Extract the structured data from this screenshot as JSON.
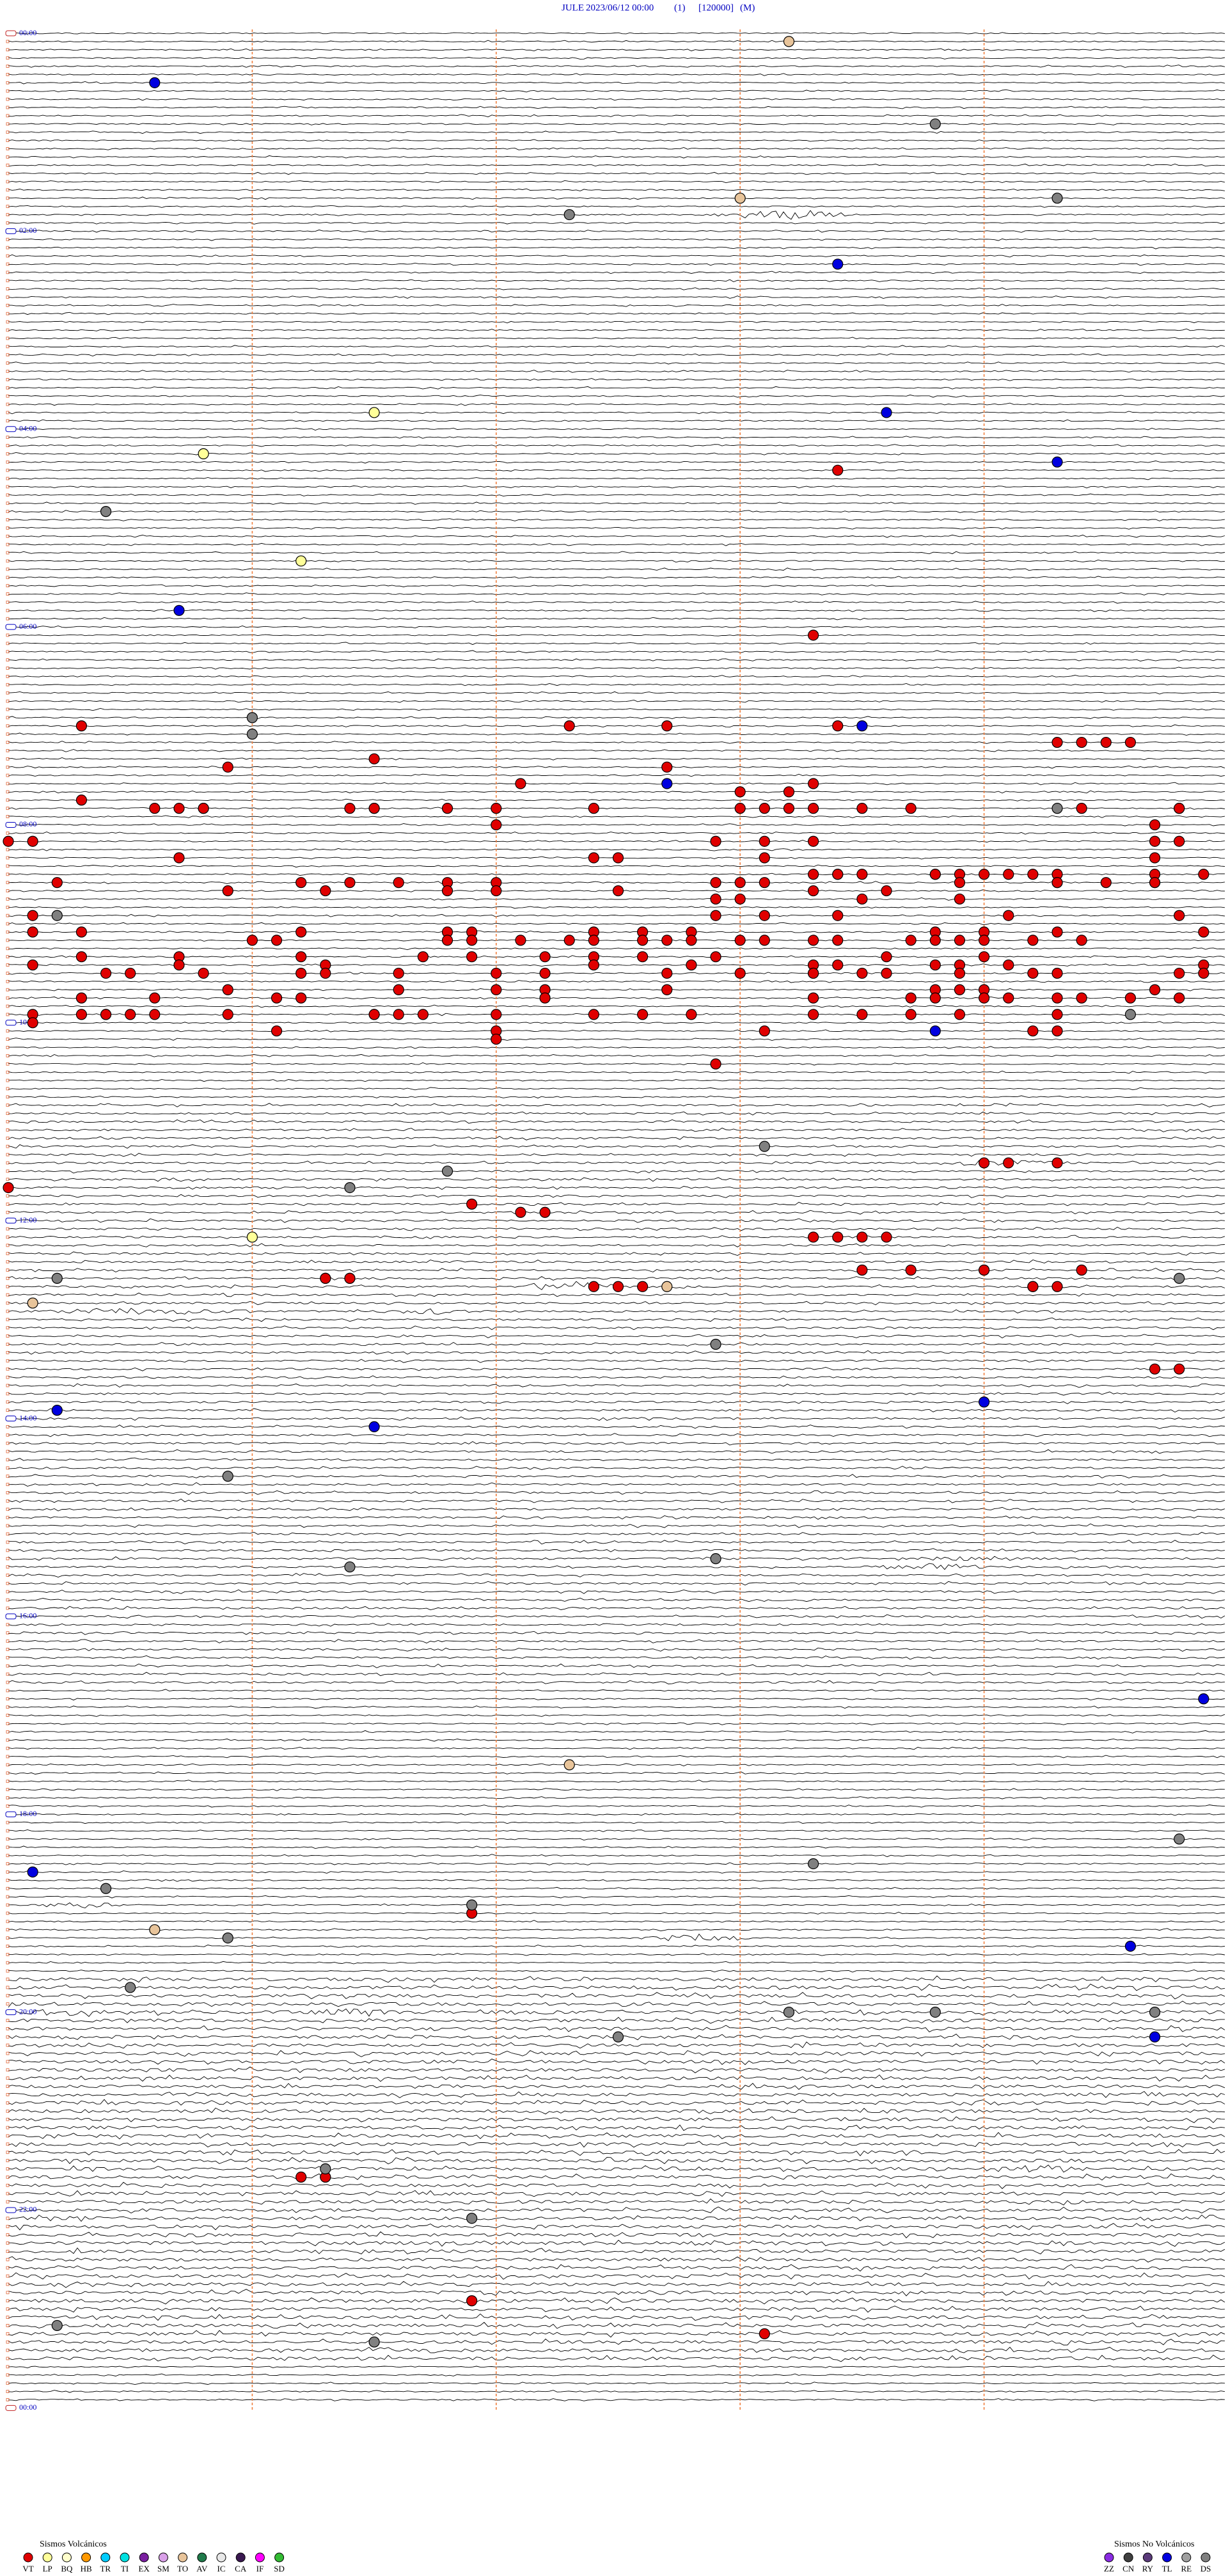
{
  "header": {
    "station": "JULE",
    "datetime": "2023/06/12 00:00",
    "channel": "(1)",
    "scale": "[120000]",
    "mode": "(M)"
  },
  "hour_labels": [
    "00:00",
    "02:00",
    "04:00",
    "06:00",
    "08:00",
    "10:00",
    "12:00",
    "14:00",
    "16:00",
    "18:00",
    "20:00",
    "22:00",
    "00:00"
  ],
  "legend": {
    "volcanic": {
      "title": "Sismos Volcánicos",
      "items": [
        {
          "code": "VT",
          "color": "#e00000"
        },
        {
          "code": "LP",
          "color": "#ffff99"
        },
        {
          "code": "BQ",
          "color": "#ffffcc"
        },
        {
          "code": "HB",
          "color": "#ff9900"
        },
        {
          "code": "TR",
          "color": "#00ccff"
        },
        {
          "code": "TI",
          "color": "#00e0e0"
        },
        {
          "code": "EX",
          "color": "#7a1fa0"
        },
        {
          "code": "SM",
          "color": "#d9a0e8"
        },
        {
          "code": "TO",
          "color": "#e8c49a"
        },
        {
          "code": "AV",
          "color": "#1f7a4a"
        },
        {
          "code": "IC",
          "color": "#e8e8e8"
        },
        {
          "code": "CA",
          "color": "#3a1850"
        },
        {
          "code": "IF",
          "color": "#ff00ff"
        },
        {
          "code": "SD",
          "color": "#33bb33"
        }
      ]
    },
    "non_volcanic": {
      "title": "Sismos No Volcánicos",
      "items": [
        {
          "code": "ZZ",
          "color": "#8a2be2"
        },
        {
          "code": "CN",
          "color": "#404040"
        },
        {
          "code": "RY",
          "color": "#5a3a7a"
        },
        {
          "code": "TL",
          "color": "#0000e0"
        },
        {
          "code": "RE",
          "color": "#a0a0a0"
        },
        {
          "code": "DS",
          "color": "#808080"
        }
      ]
    }
  },
  "events": {
    "VT": [
      268.4,
      368.3,
      420.3,
      422.3,
      422.7,
      423.4,
      434.3,
      434.4,
      434.5,
      434.6,
      441.5,
      445.9,
      447.7,
      457.1,
      458.3,
      463.0,
      463.2,
      465.3,
      470.6,
      470.7,
      470.8,
      470.8,
      471.4,
      471.5,
      471.5,
      471.8,
      472.0,
      472.4,
      473.0,
      473.1,
      473.2,
      473.3,
      473.5,
      473.7,
      474.4,
      474.8,
      474.8,
      482.0,
      484.7,
      490.0,
      490.1,
      492.9,
      493.1,
      493.3,
      494.7,
      494.8,
      500.7,
      502.4,
      502.5,
      503.1,
      504.7,
      513.3,
      513.4,
      513.4,
      513.5,
      513.8,
      513.8,
      513.9,
      514.0,
      514.1,
      514.2,
      514.3,
      514.7,
      514.9,
      515.2,
      516.2,
      516.4,
      516.6,
      516.8,
      517.0,
      517.9,
      518.0,
      518.1,
      518.9,
      519.3,
      519.3,
      519.5,
      519.7,
      519.7,
      520.9,
      521.3,
      521.8,
      522.0,
      522.5,
      523.3,
      523.6,
      527.9,
      528.0,
      528.5,
      528.9,
      535.1,
      537.9,
      538.1,
      538.4,
      539.1,
      539.8,
      545.1,
      545.3,
      546.2,
      546.8,
      546.9,
      547.4,
      547.6,
      547.8,
      548.8,
      549.0,
      549.3,
      549.9,
      551.0,
      551.1,
      551.8,
      551.9,
      552.1,
      552.3,
      552.4,
      552.6,
      552.7,
      552.8,
      553.0,
      553.1,
      553.3,
      553.4,
      553.7,
      553.8,
      553.9,
      554.0,
      554.2,
      554.4,
      560.3,
      560.7,
      561.2,
      561.7,
      561.9,
      562.2,
      562.4,
      562.6,
      562.9,
      563.6,
      564.0,
      565.1,
      565.7,
      566.3,
      567.4,
      567.8,
      568.3,
      568.4,
      568.8,
      568.9,
      569.1,
      569.9,
      570.4,
      570.5,
      570.8,
      571.2,
      571.3,
      571.6,
      572.0,
      572.2,
      572.7,
      573.0,
      573.3,
      573.3,
      573.5,
      573.6,
      573.9,
      574.2,
      574.3,
      574.8,
      574.9,
      580.9,
      581.6,
      582.0,
      582.2,
      582.7,
      583.8,
      583.9,
      584.0,
      584.7,
      585.3,
      585.6,
      586.1,
      586.2,
      587.2,
      588.3,
      588.7,
      588.8,
      589.0,
      589.1,
      589.3,
      589.4,
      589.6,
      589.8,
      595.1,
      595.3,
      595.4,
      595.4,
      595.5,
      595.6,
      595.9,
      596.5,
      596.5,
      596.6,
      596.7,
      597.0,
      597.4,
      597.6,
      597.8,
      598.3,
      598.5,
      598.7,
      598.9,
      599.3,
      600.1,
      606.1,
      607.0,
      608.1,
      609.2,
      609.3,
      612.0,
      627.9,
      689.0,
      689.1,
      689.3,
      700.0,
      711.9,
      717.1,
      717.2,
      733.3,
      733.4,
      733.5,
      733.6,
      753.5,
      753.7,
      754.0,
      754.0,
      754.4,
      756.3,
      756.3,
      756.4,
      756.4,
      762.4,
      762.5,
      762.6,
      764.2,
      764.2,
      764.3,
      814.7,
      814.8,
      1141.9,
      1301.2,
      1301.3,
      1301.3,
      1376.9,
      1398.1
    ],
    "DS": [
      58.8,
      104.3,
      112.3,
      290.4,
      416.0,
      426.0,
      474.3,
      535.2,
      599.6,
      678.1,
      691.8,
      701.4,
      755.2,
      759.8,
      797.9,
      875.9,
      927.9,
      931.4,
      1099.8,
      1113.3,
      1125.4,
      1136.9,
      1155.9,
      1185.5,
      1203.2,
      1203.8,
      1204.7,
      1217.5,
      1296.3,
      1326.9,
      1390.2,
      1401.5
    ],
    "TL": [
      30.6,
      143.4,
      233.6,
      264.3,
      350.7,
      423.5,
      457.7,
      608.8,
      834.0,
      835.2,
      846.5,
      1014.9,
      1115.1,
      1164.6,
      1219.7
    ],
    "LP": [
      231.5,
      255.8,
      321.2,
      731.0
    ],
    "TO": [
      8.2,
      103.0,
      762.7,
      770.1,
      1052.3,
      1150.6
    ]
  }
}
